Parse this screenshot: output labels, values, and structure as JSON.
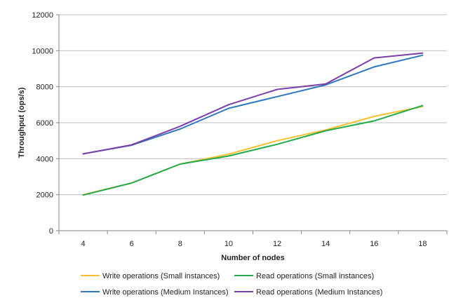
{
  "chart_data": {
    "type": "line",
    "title": "",
    "xlabel": "Number of nodes",
    "ylabel": "Throughput (ops/s)",
    "categories": [
      "4",
      "6",
      "8",
      "10",
      "12",
      "14",
      "16",
      "18"
    ],
    "ylim": [
      0,
      12000
    ],
    "yticks": [
      0,
      2000,
      4000,
      6000,
      8000,
      10000,
      12000
    ],
    "grid": true,
    "legend_position": "bottom",
    "series": [
      {
        "name": "Write operations (Small instances)",
        "color": "#f5c12e",
        "values": [
          2000,
          2650,
          3700,
          4250,
          5000,
          5600,
          6350,
          6900
        ]
      },
      {
        "name": "Read operations (Small instances)",
        "color": "#22aa4c",
        "values": [
          1980,
          2650,
          3700,
          4150,
          4800,
          5550,
          6100,
          6950
        ]
      },
      {
        "name": "Write operations (Medium Instances)",
        "color": "#2e78c0",
        "values": [
          4270,
          4750,
          5650,
          6800,
          7450,
          8100,
          9100,
          9750
        ]
      },
      {
        "name": "Read operations (Medium Instances)",
        "color": "#7a3fa8",
        "values": [
          4270,
          4770,
          5800,
          7000,
          7850,
          8150,
          9600,
          9870
        ]
      }
    ]
  }
}
